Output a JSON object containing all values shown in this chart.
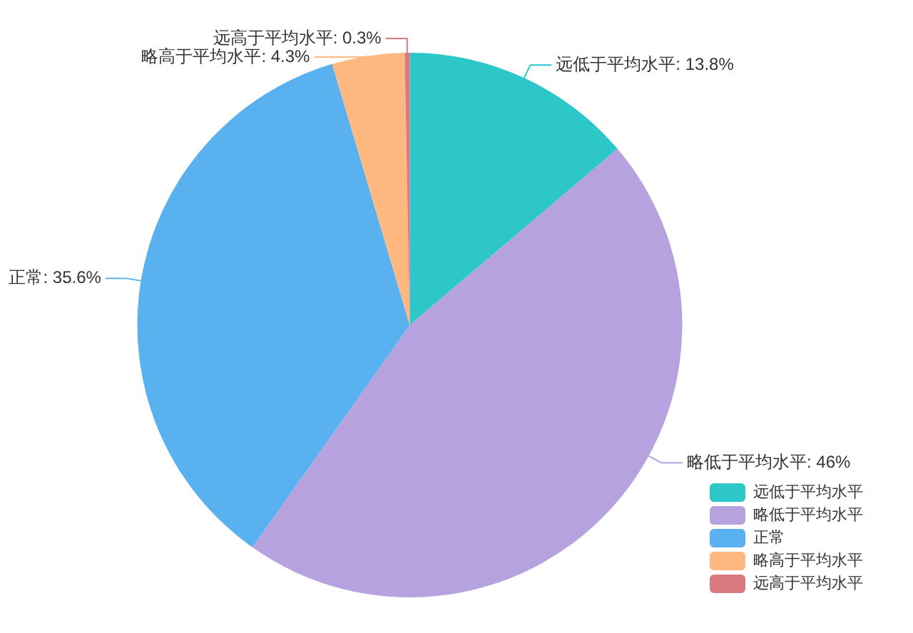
{
  "chart_data": {
    "type": "pie",
    "categories": [
      "远低于平均水平",
      "略低于平均水平",
      "正常",
      "略高于平均水平",
      "远高于平均水平"
    ],
    "values": [
      13.8,
      46,
      35.6,
      4.3,
      0.3
    ],
    "colors": [
      "#2ec7c9",
      "#b6a2de",
      "#5ab1ef",
      "#ffb980",
      "#d87a80"
    ],
    "value_labels": [
      "远低于平均水平: 13.8%",
      "略低于平均水平: 46%",
      "正常: 35.6%",
      "略高于平均水平: 4.3%",
      "远高于平均水平: 0.3%"
    ],
    "legend": "bottom right"
  }
}
